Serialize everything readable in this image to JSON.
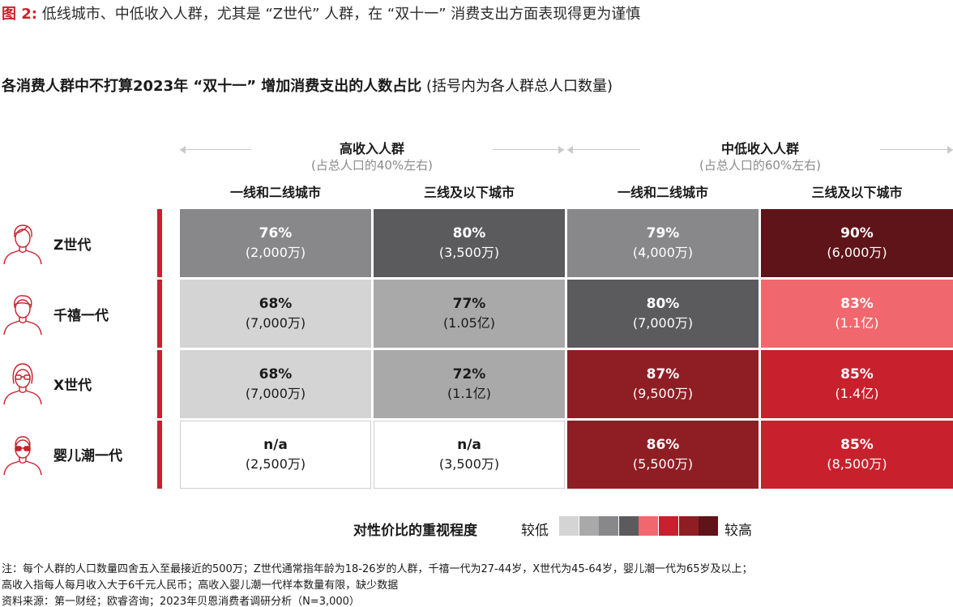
{
  "header": {
    "fig_label": "图 2:",
    "fig_title": " 低线城市、中低收入人群，尤其是 “Z世代” 人群，在 “双十一” 消费支出方面表现得更为谨慎",
    "subtitle_bold": "各消费人群中不打算2023年 “双十一” 增加消费支出的人数占比",
    "subtitle_normal": " (括号内为各人群总人口数量)"
  },
  "chart_data": {
    "type": "heatmap",
    "title": "各消费人群中不打算2023年 “双十一” 增加消费支出的人数占比",
    "groups": [
      {
        "name": "高收入人群",
        "note": "(占总人口的40%左右)"
      },
      {
        "name": "中低收入人群",
        "note": "(占总人口的60%左右)"
      }
    ],
    "columns": [
      "一线和二线城市",
      "三线及以下城市",
      "一线和二线城市",
      "三线及以下城市"
    ],
    "rows": [
      "Z世代",
      "千禧一代",
      "X世代",
      "婴儿潮一代"
    ],
    "values": [
      [
        "76%",
        "80%",
        "79%",
        "90%"
      ],
      [
        "68%",
        "77%",
        "80%",
        "83%"
      ],
      [
        "68%",
        "72%",
        "87%",
        "85%"
      ],
      [
        "n/a",
        "n/a",
        "86%",
        "85%"
      ]
    ],
    "populations": [
      [
        "(2,000万)",
        "(3,500万)",
        "(4,000万)",
        "(6,000万)"
      ],
      [
        "(7,000万)",
        "(1.05亿)",
        "(7,000万)",
        "(1.1亿)"
      ],
      [
        "(7,000万)",
        "(1.1亿)",
        "(9,500万)",
        "(1.4亿)"
      ],
      [
        "(2,500万)",
        "(3,500万)",
        "(5,500万)",
        "(8,500万)"
      ]
    ],
    "shade_level": [
      [
        3,
        4,
        3,
        8
      ],
      [
        1,
        2,
        4,
        5
      ],
      [
        1,
        2,
        7,
        6
      ],
      [
        0,
        0,
        7,
        6
      ]
    ],
    "legend": {
      "label": "对性价比的重视程度",
      "low": "较低",
      "high": "较高",
      "scale": [
        "#d4d4d4",
        "#a9a9aa",
        "#88888a",
        "#5b5b5e",
        "#f0686e",
        "#c8202d",
        "#8f1e24",
        "#5e1418"
      ]
    }
  },
  "colors": {
    "na_fill": "#ffffff",
    "dark_text": "#1a1a1a",
    "light_text": "#ffffff",
    "accent": "#c8202d"
  },
  "footnotes": [
    "注：每个人群的人口数量四舍五入至最接近的500万；Z世代通常指年龄为18-26岁的人群，千禧一代为27-44岁，X世代为45-64岁，婴儿潮一代为65岁及以上；",
    "高收入指每人每月收入大于6千元人民币；高收入婴儿潮一代样本数量有限，缺少数据",
    "资料来源：第一财经；欧睿咨询；2023年贝恩消费者调研分析（N=3,000）"
  ],
  "icons": [
    "gen-z-person-icon",
    "millennial-person-icon",
    "gen-x-person-icon",
    "baby-boomer-person-icon"
  ]
}
